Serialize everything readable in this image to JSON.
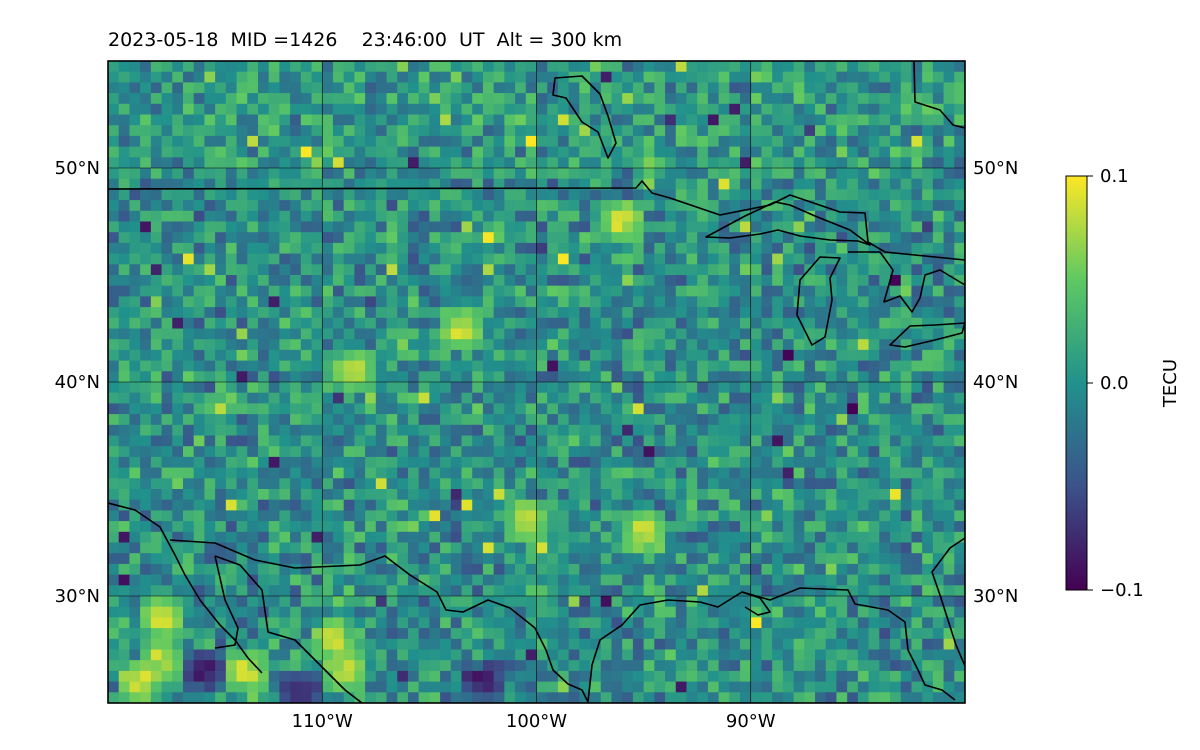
{
  "title": "2023-05-18  MID =1426    23:46:00  UT  Alt = 300 km",
  "chart_data": {
    "type": "heatmap",
    "title": "2023-05-18  MID =1426    23:46:00  UT  Alt = 300 km",
    "map_projection": "equirectangular",
    "lon_range": [
      -120,
      -80
    ],
    "lat_range": [
      25,
      55
    ],
    "x_ticks": [
      {
        "value": -110,
        "label": "110°W"
      },
      {
        "value": -100,
        "label": "100°W"
      },
      {
        "value": -90,
        "label": "90°W"
      }
    ],
    "y_ticks": [
      {
        "value": 50,
        "label": "50°N"
      },
      {
        "value": 40,
        "label": "40°N"
      },
      {
        "value": 30,
        "label": "30°N"
      }
    ],
    "gridlines": true,
    "coastlines": true,
    "colormap": "viridis",
    "colormap_stops": [
      "#440154",
      "#3b528b",
      "#21918c",
      "#5ec962",
      "#fde725"
    ],
    "colorbar": {
      "label": "TECU",
      "range": [
        -0.1,
        0.1
      ],
      "ticks": [
        {
          "value": 0.1,
          "label": "0.1"
        },
        {
          "value": 0.0,
          "label": "0.0"
        },
        {
          "value": -0.1,
          "label": "−0.1"
        }
      ],
      "placement": "right"
    },
    "grid_resolution_deg": 0.5,
    "field_summary": "Differential TEC mostly near 0 (teal) with fine-scale mottling ±0.05; northern band slightly positive; strong positive (≥0.1) patches in southwest near 26-30°N, 119-109°W; negative pockets near 26°N 102°W.",
    "anomalies": [
      {
        "lon": -117.5,
        "lat": 27.0,
        "value": 0.1
      },
      {
        "lon": -118.5,
        "lat": 26.0,
        "value": 0.1
      },
      {
        "lon": -113.5,
        "lat": 26.5,
        "value": 0.1
      },
      {
        "lon": -109.5,
        "lat": 28.0,
        "value": 0.1
      },
      {
        "lon": -109.0,
        "lat": 26.5,
        "value": 0.1
      },
      {
        "lon": -117.5,
        "lat": 29.0,
        "value": 0.1
      },
      {
        "lon": -115.5,
        "lat": 26.5,
        "value": -0.1
      },
      {
        "lon": -102.5,
        "lat": 26.0,
        "value": -0.1
      },
      {
        "lon": -111.0,
        "lat": 25.5,
        "value": -0.1
      },
      {
        "lon": -100.5,
        "lat": 33.5,
        "value": 0.1
      },
      {
        "lon": -96.0,
        "lat": 47.5,
        "value": 0.1
      },
      {
        "lon": -103.5,
        "lat": 42.5,
        "value": 0.1
      },
      {
        "lon": -108.5,
        "lat": 40.5,
        "value": 0.1
      },
      {
        "lon": -95.0,
        "lat": 33.0,
        "value": 0.1
      }
    ]
  }
}
